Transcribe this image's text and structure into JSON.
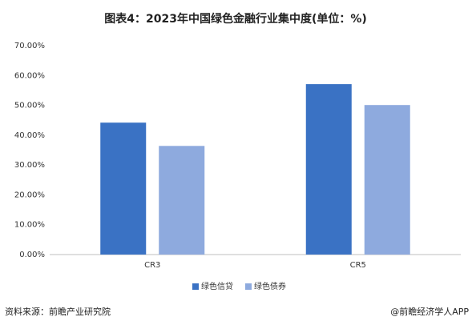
{
  "chart_data": {
    "type": "bar",
    "title": "图表4：2023年中国绿色金融行业集中度(单位：%)",
    "categories": [
      "CR3",
      "CR5"
    ],
    "series": [
      {
        "name": "绿色信贷",
        "color": "#3a72c4",
        "values": [
          44.2,
          57.1
        ]
      },
      {
        "name": "绿色债券",
        "color": "#8eaade",
        "values": [
          36.4,
          50.1
        ]
      }
    ],
    "ylim": [
      0,
      70
    ],
    "yticks": [
      {
        "value": 0,
        "label": "0.00%"
      },
      {
        "value": 10,
        "label": "10.00%"
      },
      {
        "value": 20,
        "label": "20.00%"
      },
      {
        "value": 30,
        "label": "30.00%"
      },
      {
        "value": 40,
        "label": "40.00%"
      },
      {
        "value": 50,
        "label": "50.00%"
      },
      {
        "value": 60,
        "label": "60.00%"
      },
      {
        "value": 70,
        "label": "70.00%"
      }
    ],
    "grid": false,
    "legend": "bottom",
    "source": "资料来源：前瞻产业研究院",
    "credit": "@前瞻经济学人APP"
  }
}
